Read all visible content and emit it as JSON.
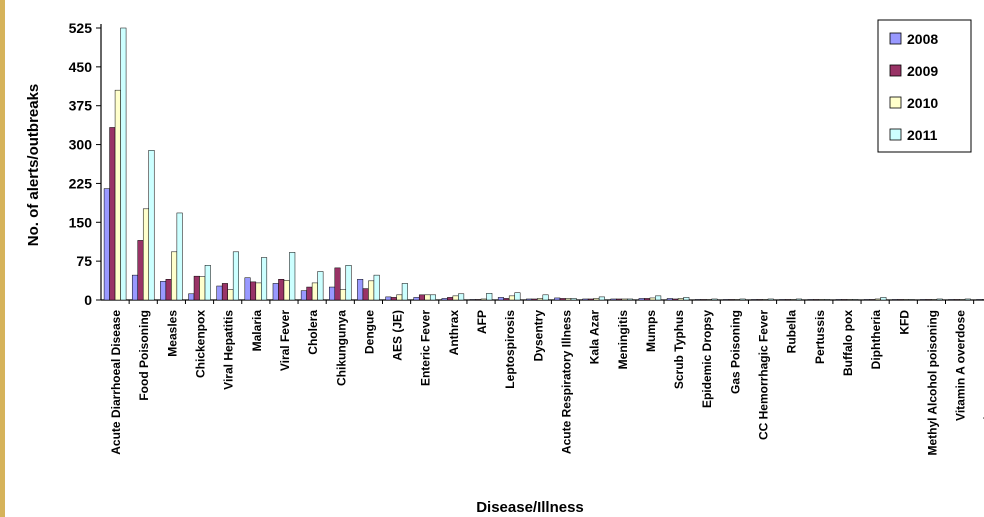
{
  "chart_data": {
    "type": "bar",
    "title": "",
    "xlabel": "Disease/Illness",
    "ylabel": "No. of alerts/outbreaks",
    "ylim": [
      0,
      525
    ],
    "yticks": [
      "0",
      "75",
      "150",
      "225",
      "300",
      "375",
      "450",
      "525"
    ],
    "legend_position": "top-right",
    "grid": false,
    "categories": [
      "Acute Diarrhoeal Disease",
      "Food Poisoning",
      "Measles",
      "Chickenpox",
      "Viral Hepatitis",
      "Malaria",
      "Viral Fever",
      "Cholera",
      "Chikungunya",
      "Dengue",
      "AES (JE)",
      "Enteric Fever",
      "Anthrax",
      "AFP",
      "Leptospirosis",
      "Dysentry",
      "Acute Respiratory Illness",
      "Kala Azar",
      "Meningitis",
      "Mumps",
      "Scrub Typhus",
      "Epidemic Dropsy",
      "Gas Poisoning",
      "CC Hemorrhagic Fever",
      "Rubella",
      "Pertussis",
      "Buffalo pox",
      "Diphtheria",
      "KFD",
      "Methyl Alcohol poisoning",
      "Vitamin A overdose",
      "Sub Cutaneous Worm"
    ],
    "series": [
      {
        "name": "2008",
        "color": "#9999ff",
        "values": [
          215,
          48,
          36,
          12,
          27,
          43,
          32,
          18,
          25,
          40,
          6,
          5,
          3,
          1,
          5,
          2,
          4,
          2,
          2,
          3,
          3,
          1,
          1,
          1,
          1,
          1,
          1,
          1,
          1,
          1,
          1,
          1
        ]
      },
      {
        "name": "2009",
        "color": "#993366",
        "values": [
          333,
          115,
          40,
          46,
          32,
          35,
          40,
          25,
          62,
          22,
          5,
          10,
          5,
          1,
          3,
          2,
          3,
          2,
          2,
          3,
          2,
          1,
          1,
          1,
          1,
          1,
          1,
          1,
          1,
          1,
          1,
          1
        ]
      },
      {
        "name": "2010",
        "color": "#ffffcc",
        "values": [
          405,
          176,
          93,
          45,
          20,
          33,
          38,
          33,
          20,
          37,
          10,
          10,
          8,
          2,
          8,
          3,
          3,
          3,
          2,
          4,
          3,
          1,
          1,
          1,
          1,
          1,
          1,
          2,
          1,
          1,
          1,
          1
        ]
      },
      {
        "name": "2011",
        "color": "#ccffff",
        "values": [
          525,
          289,
          168,
          67,
          93,
          82,
          92,
          55,
          67,
          48,
          32,
          10,
          12,
          13,
          14,
          10,
          3,
          6,
          2,
          8,
          5,
          2,
          2,
          2,
          2,
          1,
          1,
          5,
          1,
          2,
          2,
          1
        ]
      }
    ]
  }
}
